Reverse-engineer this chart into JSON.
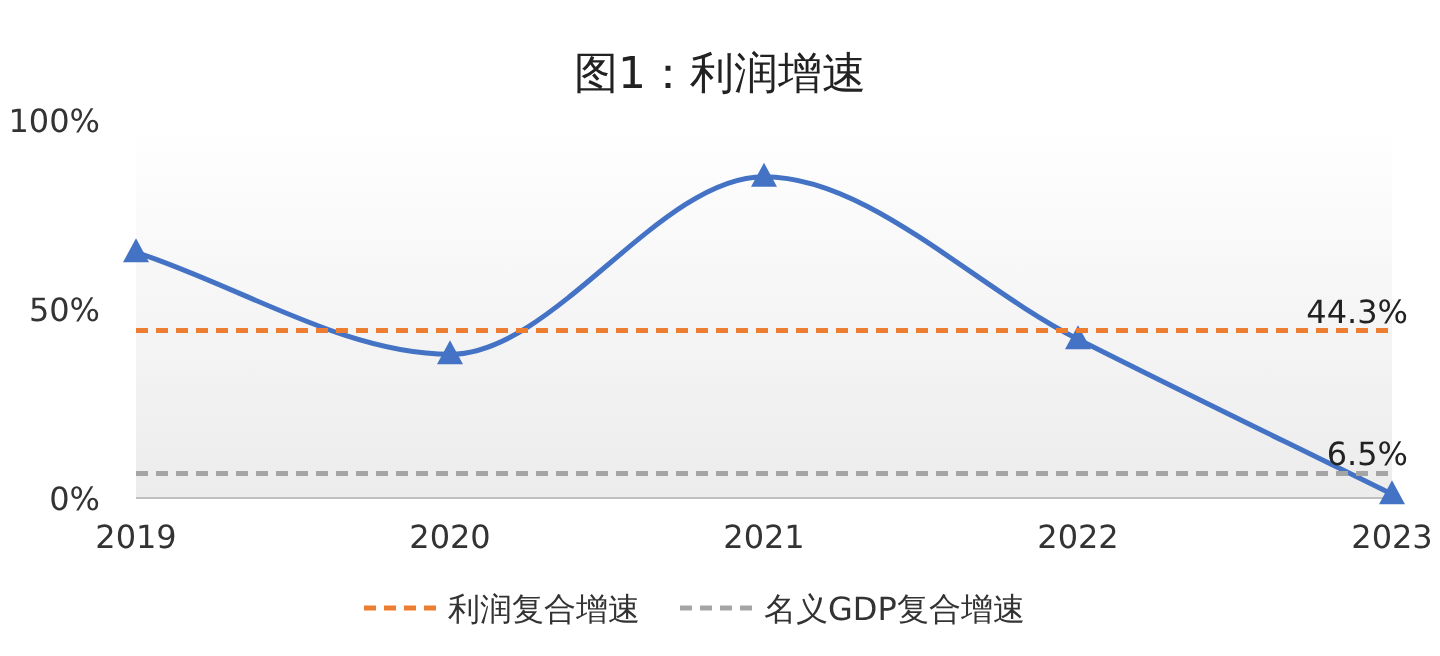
{
  "chart_data": {
    "type": "line",
    "title": "图1：利润增速",
    "categories": [
      "2019",
      "2020",
      "2021",
      "2022",
      "2023"
    ],
    "ylim": [
      0,
      100
    ],
    "yticks": [
      {
        "value": 0,
        "label": "0%"
      },
      {
        "value": 50,
        "label": "50%"
      },
      {
        "value": 100,
        "label": "100%"
      }
    ],
    "legend": "bottom",
    "grid": false,
    "series": [
      {
        "color": "#4472c4",
        "marker": "triangle",
        "line_style": "solid",
        "values": [
          65,
          38,
          85,
          42,
          1
        ]
      },
      {
        "name": "利润复合增速",
        "color": "#ed7d31",
        "marker": "none",
        "line_style": "dashed",
        "values": [
          44.3,
          44.3,
          44.3,
          44.3,
          44.3
        ],
        "value_labels": [
          null,
          null,
          null,
          null,
          "44.3%"
        ]
      },
      {
        "name": "名义GDP复合增速",
        "color": "#a5a5a5",
        "marker": "none",
        "line_style": "dashed",
        "values": [
          6.5,
          6.5,
          6.5,
          6.5,
          6.5
        ],
        "value_labels": [
          null,
          null,
          null,
          null,
          "6.5%"
        ]
      }
    ]
  }
}
